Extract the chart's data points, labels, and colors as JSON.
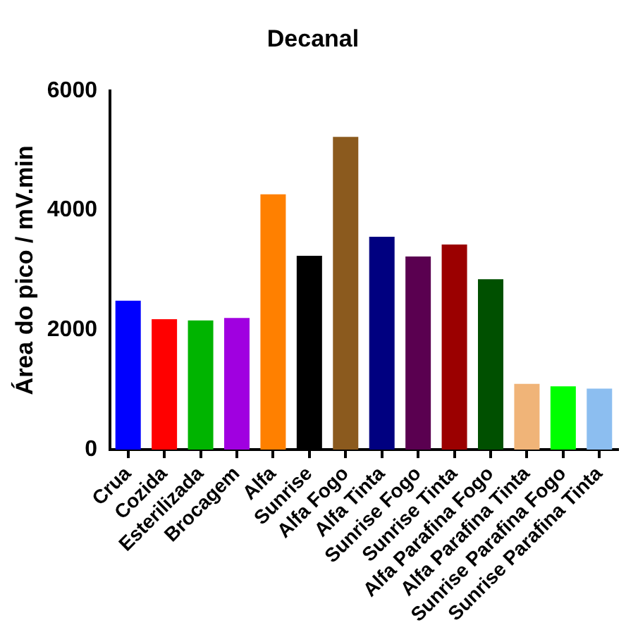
{
  "chart_data": {
    "type": "bar",
    "title": "Decanal",
    "ylabel": "Área do pico / mV.min",
    "categories": [
      "Crua",
      "Cozida",
      "Esterilizada",
      "Brocagem",
      "Alfa",
      "Sunrise",
      "Alfa Fogo",
      "Alfa Tinta",
      "Sunrise Fogo",
      "Sunrise Tinta",
      "Alfa Parafina Fogo",
      "Alfa Parafina Tinta",
      "Sunrise Parafina Fogo",
      "Sunrise Parafina Tinta"
    ],
    "values": [
      2490,
      2180,
      2160,
      2200,
      4270,
      3240,
      5230,
      3560,
      3230,
      3430,
      2850,
      1100,
      1060,
      1020
    ],
    "colors": [
      "#0000ff",
      "#ff0000",
      "#00b400",
      "#a000e0",
      "#ff8000",
      "#000000",
      "#8b5a1e",
      "#000080",
      "#5a0050",
      "#9b0000",
      "#005000",
      "#f0b478",
      "#00ff00",
      "#8cbef0"
    ],
    "ylim": [
      0,
      6000
    ],
    "yticks": [
      0,
      2000,
      4000,
      6000
    ],
    "grid": false,
    "legend": false
  }
}
